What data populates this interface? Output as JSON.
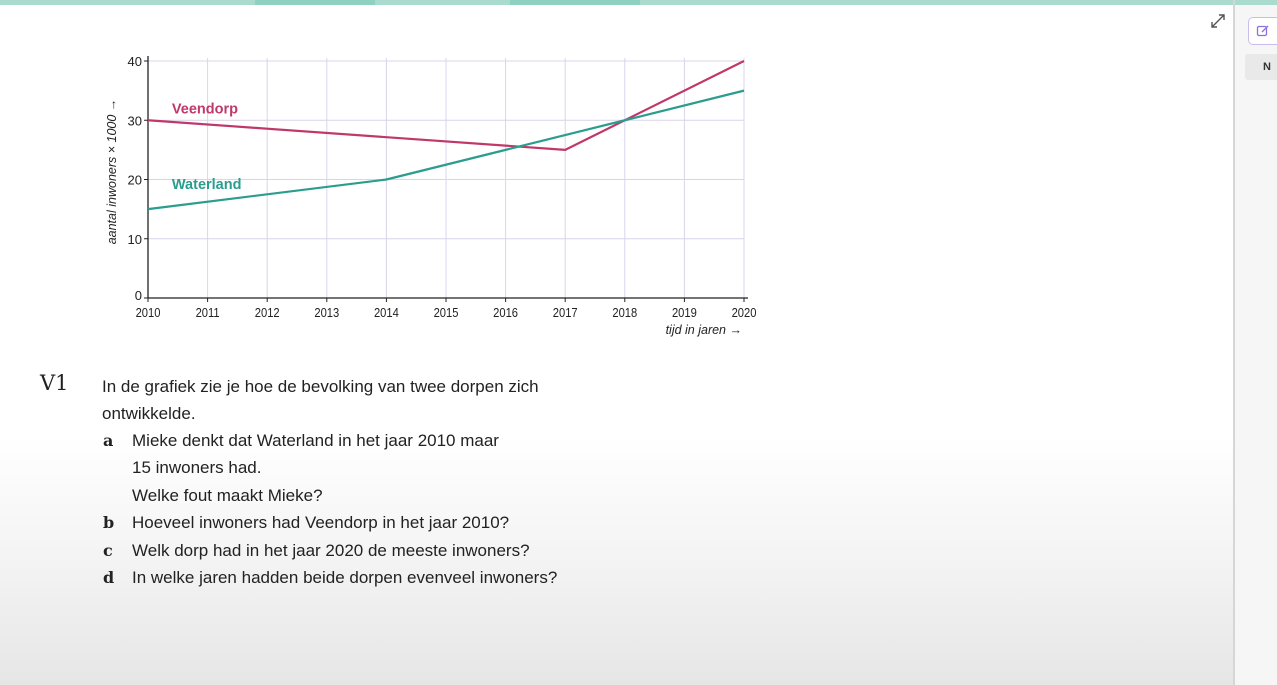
{
  "exercise": {
    "number": "V1",
    "intro_line1": "In de grafiek zie je hoe de bevolking van twee dorpen zich",
    "intro_line2": "ontwikkelde.",
    "questions": [
      {
        "letter": "a",
        "lines": [
          "Mieke denkt dat Waterland in het jaar 2010 maar",
          "15 inwoners had.",
          "Welke fout maakt Mieke?"
        ]
      },
      {
        "letter": "b",
        "lines": [
          "Hoeveel inwoners had Veendorp in het jaar 2010?"
        ]
      },
      {
        "letter": "c",
        "lines": [
          "Welk dorp had in het jaar 2020 de meeste inwoners?"
        ]
      },
      {
        "letter": "d",
        "lines": [
          "In welke jaren hadden beide dorpen evenveel inwoners?"
        ]
      }
    ]
  },
  "right_panel": {
    "label": "N"
  },
  "icons": {
    "expand": "expand-icon",
    "edit": "edit-icon"
  },
  "colors": {
    "veendorp": "#c0386a",
    "waterland": "#2a9d8f",
    "grid": "#d9d4ec",
    "axis": "#222222"
  },
  "chart_data": {
    "type": "line",
    "x": [
      2010,
      2011,
      2012,
      2013,
      2014,
      2015,
      2016,
      2017,
      2018,
      2019,
      2020
    ],
    "xlim": [
      2010,
      2020
    ],
    "ylim": [
      0,
      40
    ],
    "yticks": [
      0,
      10,
      20,
      30,
      40
    ],
    "xlabel": "tijd in jaren",
    "ylabel": "aantal inwoners × 1000",
    "grid": true,
    "series": [
      {
        "name": "Veendorp",
        "points": [
          [
            2010,
            30
          ],
          [
            2017,
            25
          ],
          [
            2020,
            40
          ]
        ],
        "label_at": [
          2010.2,
          32
        ],
        "color": "#c0386a"
      },
      {
        "name": "Waterland",
        "points": [
          [
            2010,
            15
          ],
          [
            2014,
            20
          ],
          [
            2016,
            25
          ],
          [
            2018,
            30
          ],
          [
            2020,
            35
          ]
        ],
        "label_at": [
          2010.2,
          19.2
        ],
        "color": "#2a9d8f"
      }
    ]
  }
}
